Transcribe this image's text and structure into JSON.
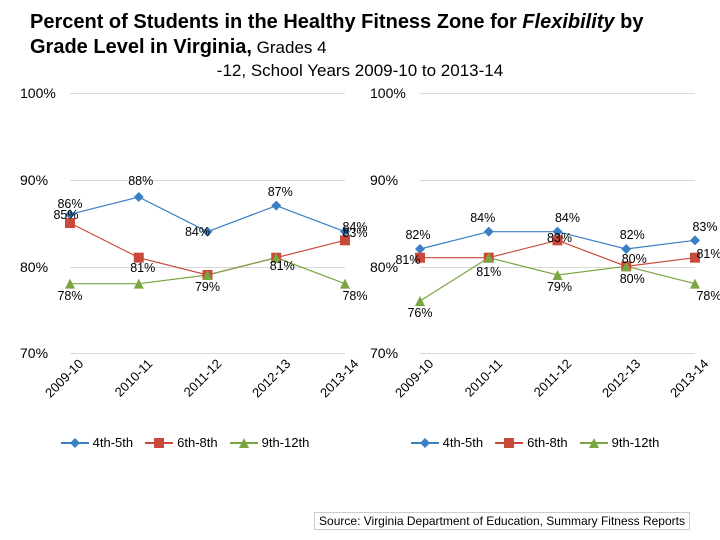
{
  "title_part1": "Percent of Students in the Healthy Fitness Zone for ",
  "title_italic": "Flexibility",
  "title_part2": " by Grade Level in Virginia,",
  "title_sub1": " Grades 4",
  "title_sub2": "-12, School Years 2009-10 to 2013-14",
  "source": "Source: Virginia Department of Education, Summary Fitness Reports",
  "years": [
    "2009-10",
    "2010-11",
    "2011-12",
    "2012-13",
    "2013-14"
  ],
  "ylim": [
    70,
    100
  ],
  "yticks": [
    70,
    80,
    90,
    100
  ],
  "colors": {
    "s1": "#3b7fc4",
    "s2": "#c94a3b",
    "s3": "#7aa642",
    "grid": "#d9d9d9"
  },
  "legend": {
    "left": [
      "4th-5th",
      "6th-8th",
      "9th-12th"
    ],
    "right": [
      "4th-5th",
      "6th-8th",
      "9th-12th"
    ]
  },
  "left": {
    "series": [
      {
        "key": "s1",
        "marker": "diamond",
        "vals": [
          86,
          88,
          84,
          87,
          84
        ],
        "labels": [
          {
            "v": "86%",
            "dx": 0,
            "dy": -11
          },
          {
            "v": "88%",
            "dx": 2,
            "dy": -16
          },
          {
            "v": "84%",
            "dx": -10,
            "dy": 0
          },
          {
            "v": "87%",
            "dx": 4,
            "dy": -14
          },
          {
            "v": "84%",
            "dx": 10,
            "dy": -5
          }
        ]
      },
      {
        "key": "s2",
        "marker": "square",
        "vals": [
          85,
          81,
          79,
          81,
          83
        ],
        "labels": [
          {
            "v": "85%",
            "dx": -4,
            "dy": -8
          },
          {
            "v": "81%",
            "dx": 4,
            "dy": 10
          },
          {
            "v": "79%",
            "dx": 0,
            "dy": 12
          },
          {
            "v": "81%",
            "dx": 6,
            "dy": 8
          },
          {
            "v": "83%",
            "dx": 10,
            "dy": -8
          }
        ]
      },
      {
        "key": "s3",
        "marker": "triangle",
        "vals": [
          78,
          78,
          79,
          81,
          78
        ],
        "labels": [
          {
            "v": "78%",
            "dx": 0,
            "dy": 12
          },
          {
            "v": "",
            "dx": 0,
            "dy": 0
          },
          {
            "v": "",
            "dx": 0,
            "dy": 0
          },
          {
            "v": "",
            "dx": 0,
            "dy": 0
          },
          {
            "v": "78%",
            "dx": 10,
            "dy": 12
          }
        ]
      }
    ]
  },
  "right": {
    "series": [
      {
        "key": "s1",
        "marker": "diamond",
        "vals": [
          82,
          84,
          84,
          82,
          83
        ],
        "labels": [
          {
            "v": "82%",
            "dx": -2,
            "dy": -14
          },
          {
            "v": "84%",
            "dx": -6,
            "dy": -14
          },
          {
            "v": "84%",
            "dx": 10,
            "dy": -14
          },
          {
            "v": "82%",
            "dx": 6,
            "dy": -14
          },
          {
            "v": "83%",
            "dx": 10,
            "dy": -14
          }
        ]
      },
      {
        "key": "s2",
        "marker": "square",
        "vals": [
          81,
          81,
          83,
          80,
          81
        ],
        "labels": [
          {
            "v": "81%",
            "dx": -12,
            "dy": 2
          },
          {
            "v": "81%",
            "dx": 0,
            "dy": 14
          },
          {
            "v": "83%",
            "dx": 2,
            "dy": -3
          },
          {
            "v": "80%",
            "dx": 8,
            "dy": -8
          },
          {
            "v": "81%",
            "dx": 14,
            "dy": -4
          }
        ]
      },
      {
        "key": "s3",
        "marker": "triangle",
        "vals": [
          76,
          81,
          79,
          80,
          78
        ],
        "labels": [
          {
            "v": "76%",
            "dx": 0,
            "dy": 12
          },
          {
            "v": "",
            "dx": 0,
            "dy": 0
          },
          {
            "v": "79%",
            "dx": 2,
            "dy": 12
          },
          {
            "v": "80%",
            "dx": 6,
            "dy": 12
          },
          {
            "v": "78%",
            "dx": 14,
            "dy": 12
          }
        ]
      }
    ]
  }
}
